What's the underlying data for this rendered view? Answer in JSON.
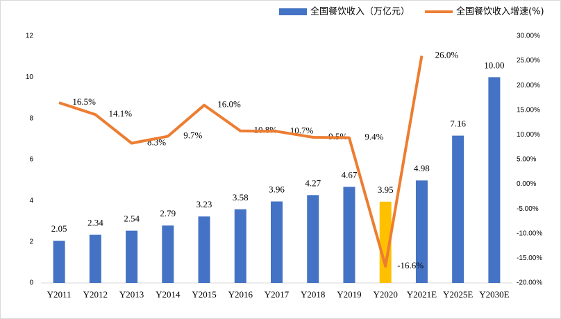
{
  "chart_data": {
    "type": "bar_line",
    "categories": [
      "Y2011",
      "Y2012",
      "Y2013",
      "Y2014",
      "Y2015",
      "Y2016",
      "Y2017",
      "Y2018",
      "Y2019",
      "Y2020",
      "Y2021E",
      "Y2025E",
      "Y2030E"
    ],
    "series": [
      {
        "name": "全国餐饮收入（万亿元）",
        "type": "bar",
        "color": "#4472c4",
        "colors": [
          "#4472c4",
          "#4472c4",
          "#4472c4",
          "#4472c4",
          "#4472c4",
          "#4472c4",
          "#4472c4",
          "#4472c4",
          "#4472c4",
          "#ffc000",
          "#4472c4",
          "#4472c4",
          "#4472c4"
        ],
        "values": [
          2.05,
          2.34,
          2.54,
          2.79,
          3.23,
          3.58,
          3.96,
          4.27,
          4.67,
          3.95,
          4.98,
          7.16,
          10.0
        ],
        "value_labels": [
          "2.05",
          "2.34",
          "2.54",
          "2.79",
          "3.23",
          "3.58",
          "3.96",
          "4.27",
          "4.67",
          "3.95",
          "4.98",
          "7.16",
          "10.00"
        ]
      },
      {
        "name": "全国餐饮收入增速(%)",
        "type": "line",
        "axis": "y2",
        "color": "#ed7d31",
        "values": [
          16.5,
          14.1,
          8.3,
          9.7,
          16.0,
          10.8,
          10.7,
          9.5,
          9.4,
          -16.6,
          26.0,
          null,
          null
        ],
        "value_labels": [
          "16.5%",
          "14.1%",
          "8.3%",
          "9.7%",
          "16.0%",
          "10.8%",
          "10.7%",
          "9.5%",
          "9.4%",
          "-16.6%",
          "26.0%",
          null,
          null
        ]
      }
    ],
    "ylim": [
      0,
      12
    ],
    "yticks": [
      0,
      2,
      4,
      6,
      8,
      10,
      12
    ],
    "y2lim": [
      -20,
      30
    ],
    "y2ticks": [
      {
        "value": -20,
        "label": "-20.00%"
      },
      {
        "value": -15,
        "label": "-15.00%"
      },
      {
        "value": -10,
        "label": "-10.00%"
      },
      {
        "value": -5,
        "label": "-5.00%"
      },
      {
        "value": 0,
        "label": "0.00%"
      },
      {
        "value": 5,
        "label": "5.00%"
      },
      {
        "value": 10,
        "label": "10.00%"
      },
      {
        "value": 15,
        "label": "15.00%"
      },
      {
        "value": 20,
        "label": "20.00%"
      },
      {
        "value": 25,
        "label": "25.00%"
      },
      {
        "value": 30,
        "label": "30.00%"
      }
    ],
    "legend": "top-right"
  }
}
